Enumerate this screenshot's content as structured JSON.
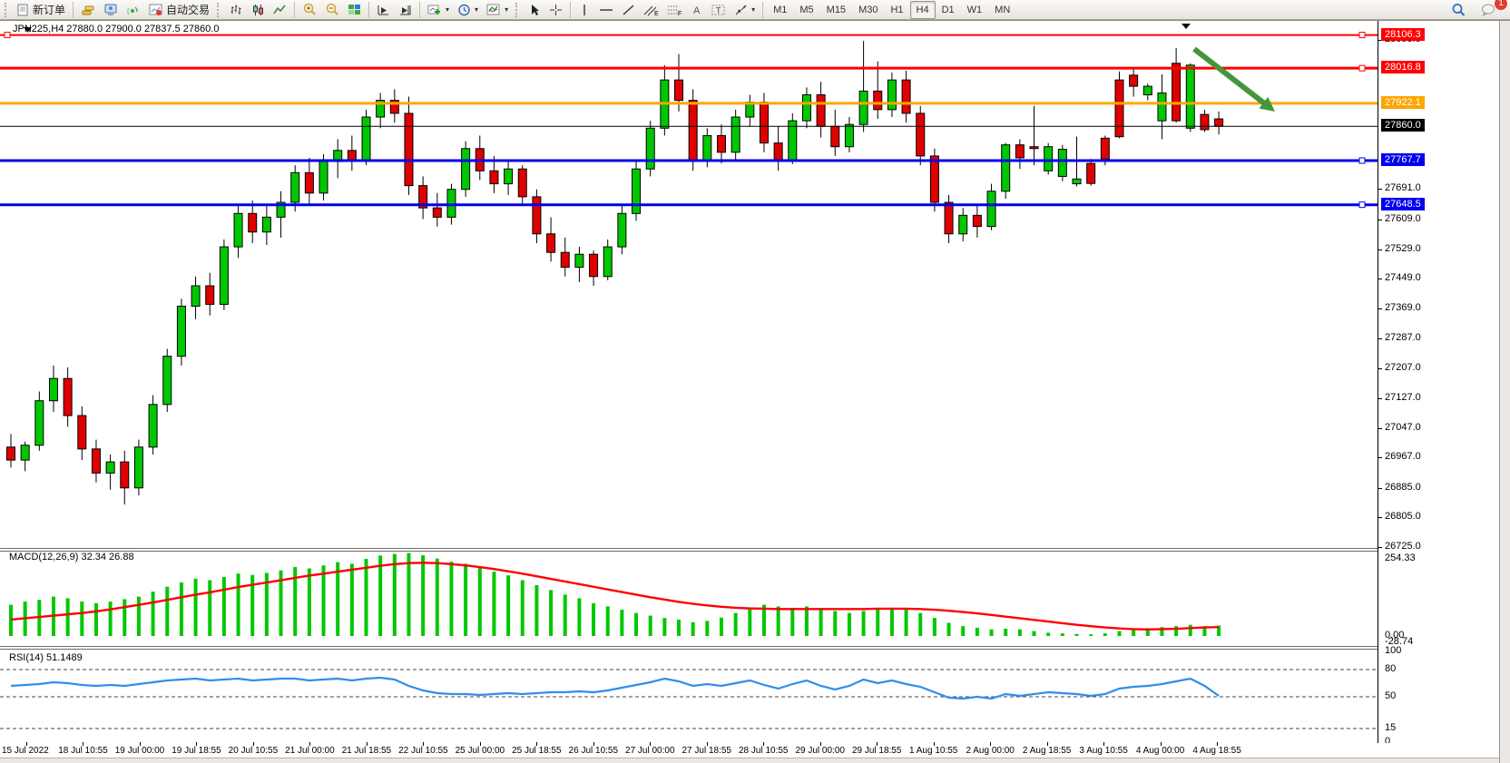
{
  "toolbar": {
    "new_order": "新订单",
    "auto_trading": "自动交易",
    "timeframes": [
      "M1",
      "M5",
      "M15",
      "M30",
      "H1",
      "H4",
      "D1",
      "W1",
      "MN"
    ],
    "active_timeframe": "H4",
    "notification_count": "1"
  },
  "chart_data": {
    "type": "candlestick",
    "symbol": "JPN225",
    "timeframe": "H4",
    "title": "JPN225,H4 27880.0 27900.0 27837.5 27860.0",
    "colors": {
      "bull": "#00c800",
      "bear": "#e00000",
      "wick": "#000000",
      "macd_hist": "#00c800",
      "macd_signal": "#ff0000",
      "rsi_line": "#2f8fe8",
      "level_red": "#ff0000",
      "level_orange": "#ffa500",
      "level_black": "#000000",
      "level_blue": "#0000ee",
      "arrow_green": "#44953c"
    },
    "price_axis": {
      "grid_labels": [
        28093.0,
        27691.0,
        27609.0,
        27529.0,
        27449.0,
        27369.0,
        27287.0,
        27207.0,
        27127.0,
        27047.0,
        26967.0,
        26885.0,
        26805.0,
        26725.0
      ],
      "tagged_levels": [
        {
          "value": 28106.3,
          "color": "#ff0000",
          "width": 2
        },
        {
          "value": 28016.8,
          "color": "#ff0000",
          "width": 3
        },
        {
          "value": 27922.1,
          "color": "#ffa500",
          "width": 3
        },
        {
          "value": 27860.0,
          "color": "#000000",
          "width": 1
        },
        {
          "value": 27767.7,
          "color": "#0000ee",
          "width": 3
        },
        {
          "value": 27648.5,
          "color": "#0000ee",
          "width": 3
        }
      ]
    },
    "time_labels": [
      "15 Jul 2022",
      "18 Jul 10:55",
      "19 Jul 00:00",
      "19 Jul 18:55",
      "20 Jul 10:55",
      "21 Jul 00:00",
      "21 Jul 18:55",
      "22 Jul 10:55",
      "25 Jul 00:00",
      "25 Jul 18:55",
      "26 Jul 10:55",
      "27 Jul 00:00",
      "27 Jul 18:55",
      "28 Jul 10:55",
      "29 Jul 00:00",
      "29 Jul 18:55",
      "1 Aug 10:55",
      "2 Aug 00:00",
      "2 Aug 18:55",
      "3 Aug 10:55",
      "4 Aug 00:00",
      "4 Aug 18:55"
    ],
    "candles": [
      [
        26995,
        27030,
        26940,
        26960
      ],
      [
        26960,
        27010,
        26930,
        27000
      ],
      [
        27000,
        27145,
        26985,
        27120
      ],
      [
        27120,
        27215,
        27090,
        27180
      ],
      [
        27180,
        27210,
        27050,
        27080
      ],
      [
        27080,
        27105,
        26960,
        26990
      ],
      [
        26990,
        27015,
        26900,
        26925
      ],
      [
        26925,
        26975,
        26880,
        26955
      ],
      [
        26955,
        26985,
        26840,
        26885
      ],
      [
        26885,
        27015,
        26865,
        26995
      ],
      [
        26995,
        27135,
        26975,
        27110
      ],
      [
        27110,
        27260,
        27090,
        27240
      ],
      [
        27240,
        27395,
        27215,
        27375
      ],
      [
        27375,
        27455,
        27340,
        27430
      ],
      [
        27430,
        27465,
        27350,
        27380
      ],
      [
        27380,
        27555,
        27365,
        27535
      ],
      [
        27535,
        27650,
        27505,
        27625
      ],
      [
        27625,
        27660,
        27545,
        27575
      ],
      [
        27575,
        27645,
        27540,
        27615
      ],
      [
        27615,
        27685,
        27560,
        27655
      ],
      [
        27655,
        27755,
        27630,
        27735
      ],
      [
        27735,
        27775,
        27650,
        27680
      ],
      [
        27680,
        27785,
        27660,
        27765
      ],
      [
        27765,
        27825,
        27720,
        27795
      ],
      [
        27795,
        27835,
        27740,
        27770
      ],
      [
        27770,
        27905,
        27755,
        27885
      ],
      [
        27885,
        27950,
        27855,
        27930
      ],
      [
        27930,
        27960,
        27870,
        27895
      ],
      [
        27895,
        27940,
        27675,
        27700
      ],
      [
        27700,
        27725,
        27610,
        27640
      ],
      [
        27640,
        27680,
        27590,
        27615
      ],
      [
        27615,
        27705,
        27595,
        27690
      ],
      [
        27690,
        27820,
        27670,
        27800
      ],
      [
        27800,
        27835,
        27715,
        27740
      ],
      [
        27740,
        27780,
        27680,
        27705
      ],
      [
        27705,
        27765,
        27675,
        27745
      ],
      [
        27745,
        27755,
        27645,
        27670
      ],
      [
        27670,
        27690,
        27545,
        27570
      ],
      [
        27570,
        27615,
        27495,
        27520
      ],
      [
        27520,
        27560,
        27455,
        27480
      ],
      [
        27480,
        27535,
        27440,
        27515
      ],
      [
        27515,
        27525,
        27430,
        27455
      ],
      [
        27455,
        27555,
        27445,
        27535
      ],
      [
        27535,
        27645,
        27515,
        27625
      ],
      [
        27625,
        27765,
        27605,
        27745
      ],
      [
        27745,
        27875,
        27725,
        27855
      ],
      [
        27855,
        28025,
        27835,
        27985
      ],
      [
        27985,
        28055,
        27900,
        27930
      ],
      [
        27930,
        27960,
        27740,
        27770
      ],
      [
        27770,
        27855,
        27750,
        27835
      ],
      [
        27835,
        27865,
        27760,
        27790
      ],
      [
        27790,
        27905,
        27770,
        27885
      ],
      [
        27885,
        27945,
        27860,
        27925
      ],
      [
        27925,
        27950,
        27790,
        27815
      ],
      [
        27815,
        27860,
        27740,
        27770
      ],
      [
        27770,
        27895,
        27758,
        27875
      ],
      [
        27875,
        27965,
        27855,
        27945
      ],
      [
        27945,
        27980,
        27830,
        27860
      ],
      [
        27860,
        27905,
        27780,
        27805
      ],
      [
        27805,
        27885,
        27790,
        27865
      ],
      [
        27865,
        28090,
        27845,
        27955
      ],
      [
        27955,
        28035,
        27880,
        27905
      ],
      [
        27905,
        28005,
        27885,
        27985
      ],
      [
        27985,
        28010,
        27870,
        27895
      ],
      [
        27895,
        27915,
        27755,
        27780
      ],
      [
        27780,
        27800,
        27630,
        27655
      ],
      [
        27655,
        27675,
        27545,
        27570
      ],
      [
        27570,
        27640,
        27550,
        27620
      ],
      [
        27620,
        27650,
        27560,
        27590
      ],
      [
        27590,
        27705,
        27580,
        27685
      ],
      [
        27685,
        27815,
        27665,
        27810
      ],
      [
        27810,
        27825,
        27745,
        27775
      ],
      [
        27805,
        27915,
        27755,
        27800
      ],
      [
        27740,
        27815,
        27730,
        27805
      ],
      [
        27725,
        27810,
        27712,
        27798
      ],
      [
        27705,
        27832,
        27698,
        27718
      ],
      [
        27760,
        27772,
        27700,
        27706
      ],
      [
        27828,
        27835,
        27755,
        27772
      ],
      [
        27985,
        28008,
        27828,
        27832
      ],
      [
        27998,
        28015,
        27940,
        27968
      ],
      [
        27945,
        27975,
        27930,
        27968
      ],
      [
        27875,
        28000,
        27825,
        27950
      ],
      [
        28030,
        28071,
        27870,
        27875
      ],
      [
        27855,
        28030,
        27845,
        28025
      ],
      [
        27892,
        27905,
        27845,
        27851
      ],
      [
        27880,
        27900,
        27838,
        27860
      ]
    ],
    "indicators": {
      "macd": {
        "label": "MACD(12,26,9) 32.34 26.88",
        "axis_labels": [
          "254.33",
          "0.00",
          "-28.74"
        ],
        "hist": [
          95,
          105,
          110,
          120,
          115,
          105,
          100,
          105,
          112,
          120,
          135,
          150,
          163,
          175,
          170,
          180,
          190,
          186,
          192,
          200,
          210,
          206,
          215,
          225,
          220,
          235,
          245,
          250,
          253,
          246,
          236,
          226,
          220,
          210,
          196,
          185,
          170,
          155,
          140,
          126,
          115,
          100,
          90,
          80,
          70,
          62,
          55,
          50,
          42,
          46,
          56,
          70,
          85,
          95,
          90,
          86,
          90,
          85,
          76,
          70,
          76,
          80,
          86,
          80,
          70,
          55,
          40,
          30,
          25,
          20,
          22,
          20,
          15,
          10,
          8,
          6,
          5,
          8,
          15,
          20,
          24,
          27,
          30,
          34,
          30,
          32
        ],
        "signal": [
          50,
          54,
          58,
          62,
          66,
          70,
          75,
          81,
          88,
          95,
          102,
          110,
          118,
          126,
          133,
          141,
          149,
          156,
          163,
          170,
          177,
          184,
          190,
          196,
          202,
          208,
          214,
          219,
          222,
          223,
          222,
          219,
          215,
          210,
          204,
          197,
          190,
          182,
          174,
          166,
          158,
          150,
          142,
          134,
          126,
          118,
          111,
          104,
          98,
          93,
          89,
          86,
          84,
          83,
          82,
          82,
          82,
          82,
          82,
          82,
          82,
          83,
          83,
          83,
          82,
          80,
          77,
          73,
          69,
          64,
          59,
          54,
          49,
          44,
          39,
          34,
          30,
          26,
          23,
          21,
          20,
          21,
          22,
          24,
          26,
          27
        ]
      },
      "rsi": {
        "label": "RSI(14) 51.1489",
        "axis_labels": [
          "100",
          "80",
          "50",
          "15",
          "0"
        ],
        "levels": [
          80,
          50,
          15
        ],
        "values": [
          62,
          63,
          64,
          66,
          65,
          63,
          62,
          63,
          62,
          64,
          66,
          68,
          69,
          70,
          68,
          69,
          70,
          68,
          69,
          70,
          70,
          68,
          69,
          70,
          68,
          70,
          71,
          69,
          62,
          57,
          54,
          53,
          53,
          52,
          53,
          54,
          53,
          54,
          55,
          55,
          56,
          55,
          57,
          60,
          63,
          66,
          70,
          67,
          62,
          64,
          62,
          65,
          68,
          63,
          59,
          64,
          68,
          62,
          58,
          62,
          69,
          65,
          68,
          64,
          61,
          55,
          49,
          48,
          50,
          48,
          53,
          51,
          53,
          55,
          54,
          53,
          51,
          53,
          59,
          61,
          62,
          64,
          67,
          70,
          62,
          51
        ]
      }
    },
    "annotation_arrow": {
      "from": [
        1316,
        53
      ],
      "to": [
        1405,
        122
      ]
    }
  }
}
